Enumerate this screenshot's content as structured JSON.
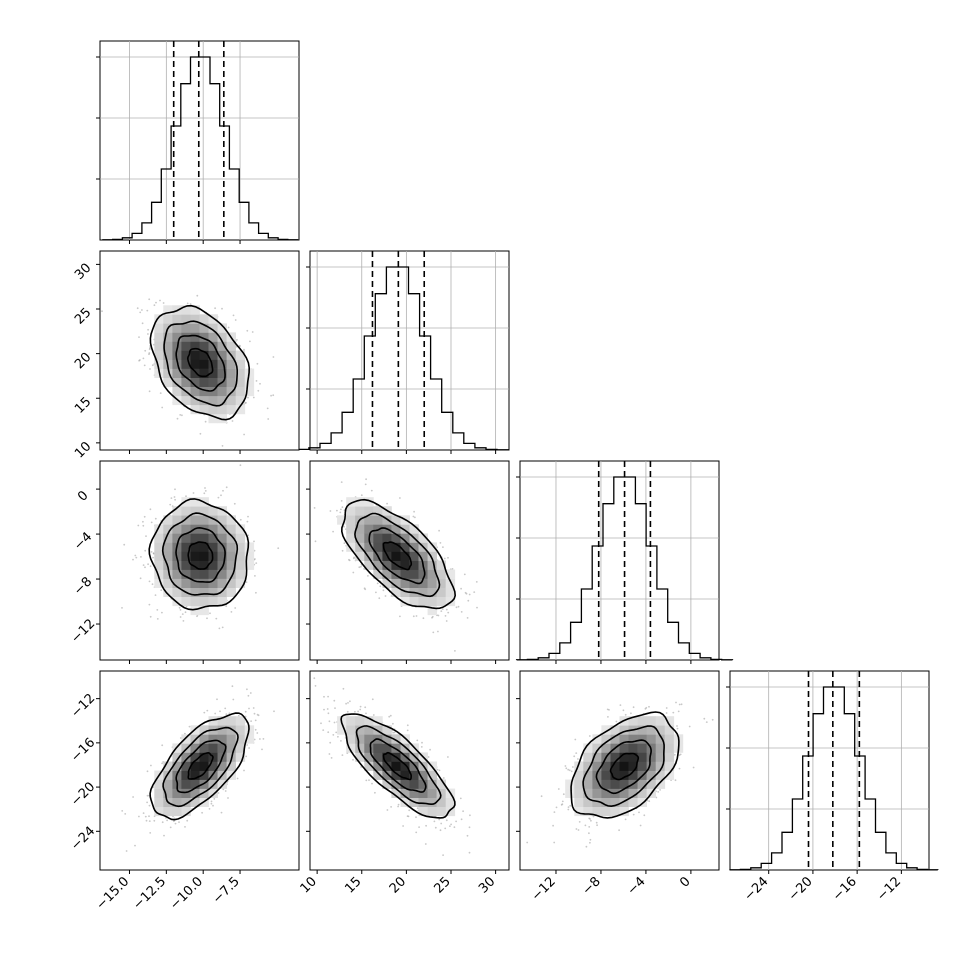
{
  "chart_data": {
    "type": "corner",
    "n_params": 4,
    "grid": true,
    "quantiles": [
      0.16,
      0.5,
      0.84
    ],
    "params": [
      {
        "ticks": [
          -15.0,
          -12.5,
          -10.0,
          -7.5
        ],
        "tick_labels": [
          "−15.0",
          "−12.5",
          "−10.0",
          "−7.5"
        ],
        "range": [
          -17.0,
          -3.5
        ],
        "mean": -10.2,
        "sd": 1.65,
        "quantile_values": [
          -12.0,
          -10.3,
          -8.6
        ]
      },
      {
        "ticks": [
          10,
          15,
          20,
          25,
          30
        ],
        "tick_labels": [
          "10",
          "15",
          "20",
          "25",
          "30"
        ],
        "range": [
          9.2,
          31.5
        ],
        "mean": 19.0,
        "sd": 3.1,
        "quantile_values": [
          16.2,
          19.1,
          22.0
        ]
      },
      {
        "ticks": [
          -12,
          -8,
          -4,
          0
        ],
        "tick_labels": [
          "−12",
          "−8",
          "−4",
          "0"
        ],
        "range": [
          -15.2,
          2.5
        ],
        "mean": -5.9,
        "sd": 2.4,
        "quantile_values": [
          -8.2,
          -5.9,
          -3.6
        ]
      },
      {
        "ticks": [
          -24,
          -20,
          -16,
          -12
        ],
        "tick_labels": [
          "−24",
          "−20",
          "−16",
          "−12"
        ],
        "range": [
          -27.5,
          -9.5
        ],
        "mean": -18.1,
        "sd": 2.35,
        "quantile_values": [
          -20.4,
          -18.2,
          -15.8
        ]
      }
    ],
    "correlations": [
      {
        "i": 1,
        "j": 0,
        "r": -0.35
      },
      {
        "i": 2,
        "j": 0,
        "r": -0.05
      },
      {
        "i": 2,
        "j": 1,
        "r": -0.65
      },
      {
        "i": 3,
        "j": 0,
        "r": 0.65
      },
      {
        "i": 3,
        "j": 1,
        "r": -0.78
      },
      {
        "i": 3,
        "j": 2,
        "r": 0.45
      }
    ],
    "hist_bins": 20,
    "contour_levels_sigma": [
      0.5,
      1.0,
      1.5,
      2.0
    ],
    "colors": {
      "line": "#000000",
      "grid": "#b0b0b0",
      "scatter": "#9a9a9a",
      "axis": "#000000"
    }
  }
}
